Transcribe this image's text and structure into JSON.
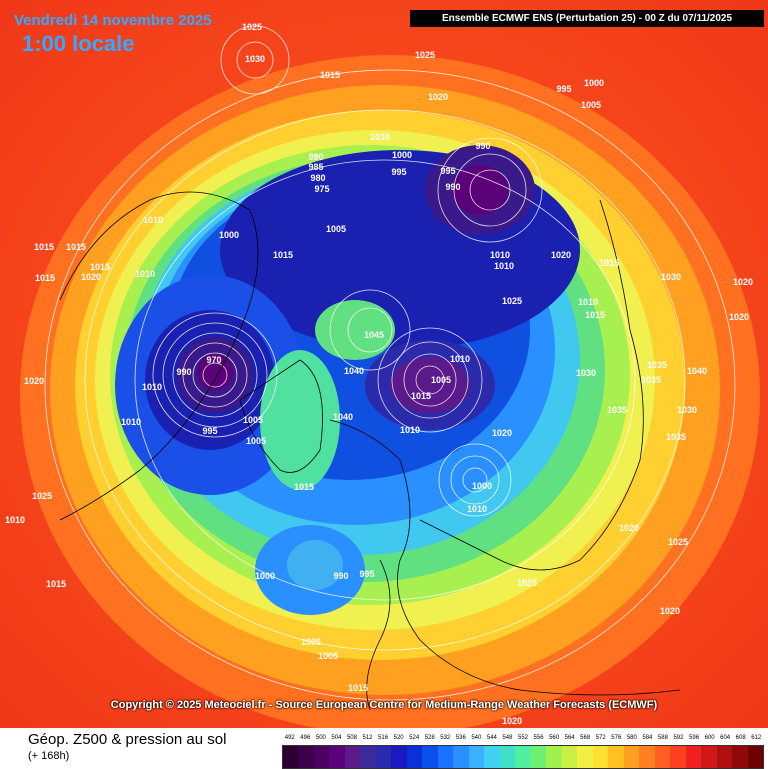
{
  "header": {
    "date_text": "Vendredi 14 novembre 2025",
    "time_text": "1:00 locale",
    "model_text": "Ensemble ECMWF ENS  (Perturbation 25)  -  00 Z du 07/11/2025"
  },
  "copyright": "Copyright © 2025 Meteociel.fr - Source European Centre for Medium-Range Weather Forecasts (ECMWF)",
  "footer": {
    "title": "Géop. Z500 & pression au sol",
    "subtitle": "(+ 168h)"
  },
  "legend": {
    "ticks": [
      "492",
      "496",
      "500",
      "504",
      "508",
      "512",
      "516",
      "520",
      "524",
      "528",
      "532",
      "536",
      "540",
      "544",
      "548",
      "552",
      "556",
      "560",
      "564",
      "568",
      "572",
      "576",
      "580",
      "584",
      "588",
      "592",
      "596",
      "600",
      "604",
      "608",
      "612"
    ],
    "colors": [
      "#2a0030",
      "#3a0048",
      "#4a0060",
      "#5a0078",
      "#5a1a8a",
      "#3a2a9a",
      "#2a2aaa",
      "#1a1ac0",
      "#0a30d8",
      "#0a50ee",
      "#1a70ff",
      "#2a90ff",
      "#3ab0ff",
      "#40d0f0",
      "#40e0c8",
      "#50f0a0",
      "#70f070",
      "#a0f050",
      "#c8f040",
      "#f0f040",
      "#ffe030",
      "#ffc020",
      "#ffa020",
      "#ff8020",
      "#ff6020",
      "#ff4020",
      "#f02020",
      "#d01818",
      "#b01010",
      "#900808",
      "#700000"
    ]
  },
  "map": {
    "pressure_labels": [
      {
        "text": "1025"
      },
      {
        "text": "1030"
      },
      {
        "text": "1015"
      },
      {
        "text": "1025"
      },
      {
        "text": "1020"
      },
      {
        "text": "995"
      },
      {
        "text": "1000"
      },
      {
        "text": "1005"
      },
      {
        "text": "1010"
      },
      {
        "text": "1000"
      },
      {
        "text": "990"
      },
      {
        "text": "985"
      },
      {
        "text": "980"
      },
      {
        "text": "975"
      },
      {
        "text": "995"
      },
      {
        "text": "990"
      },
      {
        "text": "995"
      },
      {
        "text": "990"
      },
      {
        "text": "1010"
      },
      {
        "text": "1010"
      },
      {
        "text": "1020"
      },
      {
        "text": "1015"
      },
      {
        "text": "1025"
      },
      {
        "text": "1035"
      },
      {
        "text": "1010"
      },
      {
        "text": "1015"
      },
      {
        "text": "1005"
      },
      {
        "text": "1000"
      },
      {
        "text": "1010"
      },
      {
        "text": "1015"
      },
      {
        "text": "1045"
      },
      {
        "text": "1035"
      },
      {
        "text": "1030"
      },
      {
        "text": "1040"
      },
      {
        "text": "1010"
      },
      {
        "text": "1005"
      },
      {
        "text": "970"
      },
      {
        "text": "990"
      },
      {
        "text": "995"
      },
      {
        "text": "1005"
      },
      {
        "text": "1010"
      },
      {
        "text": "1020"
      },
      {
        "text": "1040"
      },
      {
        "text": "1010"
      },
      {
        "text": "1015"
      },
      {
        "text": "1005"
      },
      {
        "text": "1000"
      },
      {
        "text": "1010"
      },
      {
        "text": "1015"
      },
      {
        "text": "1000"
      },
      {
        "text": "990"
      },
      {
        "text": "995"
      },
      {
        "text": "1030"
      },
      {
        "text": "1035"
      },
      {
        "text": "1020"
      },
      {
        "text": "1025"
      },
      {
        "text": "1020"
      },
      {
        "text": "1030"
      },
      {
        "text": "1040"
      },
      {
        "text": "1035"
      },
      {
        "text": "1025"
      },
      {
        "text": "1020"
      },
      {
        "text": "1025"
      },
      {
        "text": "1005"
      },
      {
        "text": "1005"
      },
      {
        "text": "1015"
      },
      {
        "text": "1020"
      },
      {
        "text": "1015"
      },
      {
        "text": "1010"
      },
      {
        "text": "1015"
      },
      {
        "text": "1020"
      },
      {
        "text": "1020"
      },
      {
        "text": "1015"
      },
      {
        "text": "1015"
      },
      {
        "text": "1015"
      },
      {
        "text": "1010"
      },
      {
        "text": "1010"
      },
      {
        "text": "1020"
      }
    ]
  }
}
